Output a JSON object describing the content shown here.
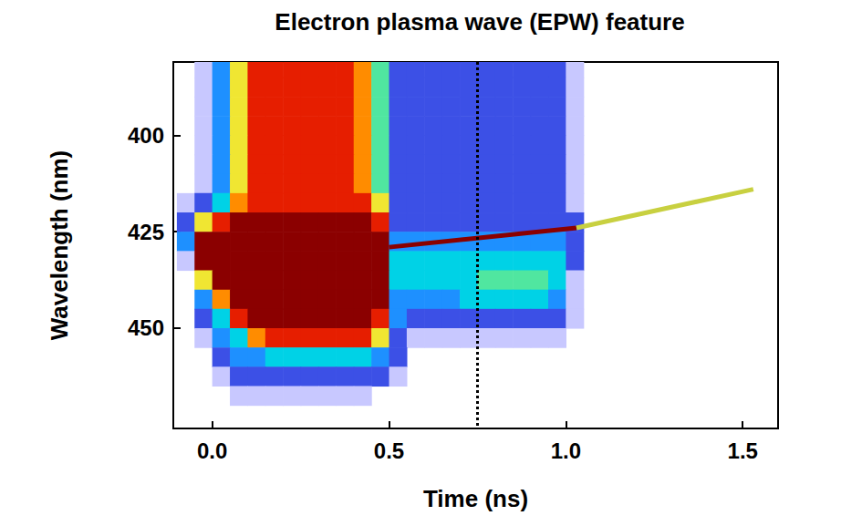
{
  "chart_data": {
    "type": "heatmap",
    "title": "Electron plasma wave (EPW) feature",
    "x_label": "Time (ns)",
    "y_label": "Wavelength (nm)",
    "xlim": [
      -0.11,
      1.6
    ],
    "ylim": [
      381,
      476
    ],
    "xticks": [
      {
        "value": 0,
        "label": "0.0"
      },
      0.5,
      {
        "value": 1,
        "label": "1.0"
      },
      1.5
    ],
    "yticks": [
      400,
      425,
      450
    ],
    "grid": false,
    "x_bins": [
      -0.1,
      -0.05,
      0,
      0.05,
      0.1,
      0.15,
      0.2,
      0.25,
      0.3,
      0.35,
      0.4,
      0.45,
      0.5,
      0.55,
      0.6,
      0.65,
      0.7,
      0.75,
      0.8,
      0.85,
      0.9,
      0.95,
      1,
      1.05,
      1.1,
      1.15,
      1.2,
      1.25,
      1.3,
      1.35,
      1.4,
      1.45,
      1.5,
      1.55,
      1.6
    ],
    "y_bins": [
      380,
      385,
      390,
      395,
      400,
      405,
      410,
      415,
      420,
      425,
      430,
      435,
      440,
      445,
      450,
      455,
      460,
      465,
      470,
      475,
      480
    ],
    "color_range": [
      0,
      9
    ],
    "cells": [
      [
        0,
        1,
        3,
        6,
        8,
        8,
        8,
        8,
        8,
        8,
        7,
        5,
        2,
        2,
        2,
        2,
        2,
        2,
        2,
        2,
        2,
        2,
        1,
        0,
        0,
        0,
        0,
        0,
        0,
        0,
        0,
        0,
        0,
        0
      ],
      [
        0,
        1,
        3,
        6,
        8,
        8,
        8,
        8,
        8,
        8,
        7,
        5,
        2,
        2,
        2,
        2,
        2,
        2,
        2,
        2,
        2,
        2,
        1,
        0,
        0,
        0,
        0,
        0,
        0,
        0,
        0,
        0,
        0,
        0
      ],
      [
        0,
        1,
        3,
        6,
        8,
        8,
        8,
        8,
        8,
        8,
        7,
        5,
        2,
        2,
        2,
        2,
        2,
        2,
        2,
        2,
        2,
        2,
        1,
        0,
        0,
        0,
        0,
        0,
        0,
        0,
        0,
        0,
        0,
        0
      ],
      [
        0,
        1,
        3,
        6,
        8,
        8,
        8,
        8,
        8,
        8,
        7,
        5,
        2,
        2,
        2,
        2,
        2,
        2,
        2,
        2,
        2,
        2,
        1,
        0,
        0,
        0,
        0,
        0,
        0,
        0,
        0,
        0,
        0,
        0
      ],
      [
        0,
        1,
        3,
        6,
        8,
        8,
        8,
        8,
        8,
        8,
        7,
        5,
        2,
        2,
        2,
        2,
        2,
        2,
        2,
        2,
        2,
        2,
        1,
        0,
        0,
        0,
        0,
        0,
        0,
        0,
        0,
        0,
        0,
        0
      ],
      [
        0,
        1,
        3,
        6,
        8,
        8,
        8,
        8,
        8,
        8,
        7,
        5,
        2,
        2,
        2,
        2,
        2,
        2,
        2,
        2,
        2,
        2,
        1,
        0,
        0,
        0,
        0,
        0,
        0,
        0,
        0,
        0,
        0,
        0
      ],
      [
        0,
        1,
        3,
        6,
        8,
        8,
        8,
        8,
        8,
        8,
        7,
        5,
        2,
        2,
        2,
        2,
        2,
        2,
        2,
        2,
        2,
        2,
        1,
        0,
        0,
        0,
        0,
        0,
        0,
        0,
        0,
        0,
        0,
        0
      ],
      [
        1,
        2,
        4,
        7,
        8,
        8,
        8,
        8,
        8,
        8,
        8,
        6,
        2,
        2,
        2,
        2,
        2,
        2,
        2,
        2,
        2,
        2,
        1,
        0,
        0,
        0,
        0,
        0,
        0,
        0,
        0,
        0,
        0,
        0
      ],
      [
        2,
        6,
        8,
        9,
        9,
        9,
        9,
        9,
        9,
        9,
        9,
        8,
        2,
        2,
        2,
        2,
        2,
        2,
        2,
        2,
        2,
        2,
        2,
        0,
        0,
        0,
        0,
        0,
        0,
        0,
        0,
        0,
        0,
        0
      ],
      [
        3,
        9,
        9,
        9,
        9,
        9,
        9,
        9,
        9,
        9,
        9,
        9,
        3,
        3,
        3,
        3,
        3,
        3,
        3,
        3,
        3,
        3,
        2,
        0,
        0,
        0,
        0,
        0,
        0,
        0,
        0,
        0,
        0,
        0
      ],
      [
        1,
        9,
        9,
        9,
        9,
        9,
        9,
        9,
        9,
        9,
        9,
        9,
        4,
        4,
        4,
        4,
        4,
        4,
        4,
        4,
        4,
        4,
        2,
        0,
        0,
        0,
        0,
        0,
        0,
        0,
        0,
        0,
        0,
        0
      ],
      [
        0,
        6,
        9,
        9,
        9,
        9,
        9,
        9,
        9,
        9,
        9,
        9,
        4,
        4,
        4,
        4,
        4,
        5,
        5,
        5,
        5,
        4,
        1,
        0,
        0,
        0,
        0,
        0,
        0,
        0,
        0,
        0,
        0,
        0
      ],
      [
        0,
        3,
        7,
        9,
        9,
        9,
        9,
        9,
        9,
        9,
        9,
        9,
        3,
        3,
        3,
        3,
        4,
        4,
        4,
        4,
        4,
        3,
        1,
        0,
        0,
        0,
        0,
        0,
        0,
        0,
        0,
        0,
        0,
        0
      ],
      [
        0,
        2,
        4,
        8,
        9,
        9,
        9,
        9,
        9,
        9,
        9,
        8,
        3,
        2,
        2,
        2,
        2,
        2,
        2,
        2,
        2,
        2,
        1,
        0,
        0,
        0,
        0,
        0,
        0,
        0,
        0,
        0,
        0,
        0
      ],
      [
        0,
        1,
        3,
        4,
        7,
        8,
        8,
        8,
        8,
        8,
        8,
        6,
        2,
        1,
        1,
        1,
        1,
        1,
        1,
        1,
        1,
        1,
        0,
        0,
        0,
        0,
        0,
        0,
        0,
        0,
        0,
        0,
        0,
        0
      ],
      [
        0,
        0,
        2,
        3,
        3,
        4,
        4,
        4,
        4,
        4,
        4,
        3,
        2,
        0,
        0,
        0,
        0,
        0,
        0,
        0,
        0,
        0,
        0,
        0,
        0,
        0,
        0,
        0,
        0,
        0,
        0,
        0,
        0,
        0
      ],
      [
        0,
        0,
        1,
        2,
        2,
        2,
        2,
        2,
        2,
        2,
        2,
        2,
        1,
        0,
        0,
        0,
        0,
        0,
        0,
        0,
        0,
        0,
        0,
        0,
        0,
        0,
        0,
        0,
        0,
        0,
        0,
        0,
        0,
        0
      ],
      [
        0,
        0,
        0,
        1,
        1,
        1,
        1,
        1,
        1,
        1,
        1,
        0,
        0,
        0,
        0,
        0,
        0,
        0,
        0,
        0,
        0,
        0,
        0,
        0,
        0,
        0,
        0,
        0,
        0,
        0,
        0,
        0,
        0,
        0
      ],
      [
        0,
        0,
        0,
        0,
        0,
        0,
        0,
        0,
        0,
        0,
        0,
        0,
        0,
        0,
        0,
        0,
        0,
        0,
        0,
        0,
        0,
        0,
        0,
        0,
        0,
        0,
        0,
        0,
        0,
        0,
        0,
        0,
        0,
        0
      ],
      [
        0,
        0,
        0,
        0,
        0,
        0,
        0,
        0,
        0,
        0,
        0,
        0,
        0,
        0,
        0,
        0,
        0,
        0,
        0,
        0,
        0,
        0,
        0,
        0,
        0,
        0,
        0,
        0,
        0,
        0,
        0,
        0,
        0,
        0
      ]
    ],
    "series": [
      {
        "type": "line",
        "color": "#8b0000",
        "x": [
          0.5,
          1.03
        ],
        "values": [
          429,
          424
        ]
      },
      {
        "type": "line",
        "color": "#c8d040",
        "x": [
          1.03,
          1.53
        ],
        "values": [
          424,
          414
        ]
      }
    ],
    "annotations": [
      {
        "type": "vline",
        "x": 0.75,
        "line_style": "dotted"
      }
    ]
  }
}
